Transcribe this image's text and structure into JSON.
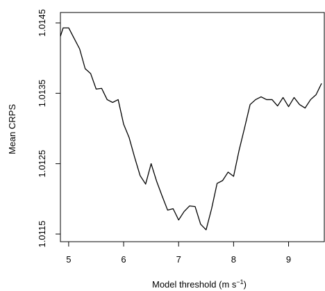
{
  "chart_data": {
    "type": "line",
    "title": "",
    "xlabel": "Model threshold (m s",
    "xlabel_superscript": "−1",
    "xlabel_close": ")",
    "ylabel": "Mean CRPS",
    "xlim": [
      4.85,
      9.65
    ],
    "ylim": [
      1.0115,
      1.0145
    ],
    "xticks": [
      5,
      6,
      7,
      8,
      9
    ],
    "xtick_labels": [
      "5",
      "6",
      "7",
      "8",
      "9"
    ],
    "yticks": [
      1.0115,
      1.0125,
      1.0135,
      1.0145
    ],
    "ytick_labels": [
      "1.0115",
      "1.0125",
      "1.0135",
      "1.0145"
    ],
    "grid": false,
    "line_color": "#000000",
    "series": [
      {
        "x": [
          4.85,
          4.9,
          5.0,
          5.1,
          5.2,
          5.3,
          5.4,
          5.5,
          5.6,
          5.7,
          5.8,
          5.9,
          6.0,
          6.1,
          6.2,
          6.3,
          6.4,
          6.5,
          6.6,
          6.7,
          6.8,
          6.9,
          7.0,
          7.1,
          7.2,
          7.3,
          7.4,
          7.5,
          7.6,
          7.7,
          7.8,
          7.9,
          8.0,
          8.1,
          8.2,
          8.3,
          8.4,
          8.5,
          8.6,
          8.7,
          8.8,
          8.9,
          9.0,
          9.1,
          9.2,
          9.3,
          9.4,
          9.5,
          9.6
        ],
        "values": [
          1.01431,
          1.01443,
          1.01443,
          1.01428,
          1.01413,
          1.01385,
          1.01378,
          1.01356,
          1.01357,
          1.01341,
          1.01337,
          1.01341,
          1.01306,
          1.01287,
          1.01259,
          1.01233,
          1.01221,
          1.0125,
          1.01225,
          1.01204,
          1.01184,
          1.01186,
          1.0117,
          1.01182,
          1.0119,
          1.01189,
          1.01164,
          1.01156,
          1.01186,
          1.01222,
          1.01226,
          1.01238,
          1.01232,
          1.01269,
          1.01301,
          1.01334,
          1.01341,
          1.01345,
          1.01341,
          1.01341,
          1.01332,
          1.01344,
          1.01331,
          1.01344,
          1.01334,
          1.01329,
          1.01341,
          1.01348,
          1.01364
        ]
      }
    ]
  }
}
